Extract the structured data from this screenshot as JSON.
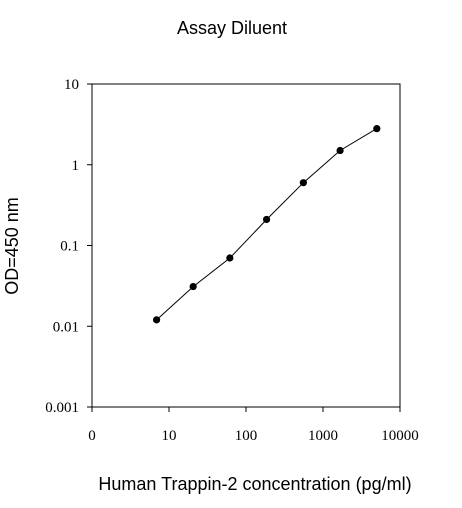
{
  "chart_data": {
    "type": "line",
    "title": "Assay Diluent",
    "xlabel": "Human Trappin-2 concentration (pg/ml)",
    "ylabel": "OD=450 nm",
    "x_scale": "log",
    "y_scale": "log",
    "xlim": [
      1,
      10000
    ],
    "ylim": [
      0.001,
      10
    ],
    "x_ticks": [
      1,
      10,
      100,
      1000,
      10000
    ],
    "x_tick_labels": [
      "0",
      "10",
      "100",
      "1000",
      "10000"
    ],
    "y_ticks": [
      0.001,
      0.01,
      0.1,
      1,
      10
    ],
    "y_tick_labels": [
      "0.001",
      "0.01",
      "0.1",
      "1",
      "10"
    ],
    "grid": false,
    "legend": "none",
    "series": [
      {
        "color": "#000000",
        "x": [
          6.9,
          20.6,
          61.7,
          185,
          556,
          1667,
          5000
        ],
        "y": [
          0.012,
          0.031,
          0.07,
          0.21,
          0.6,
          1.5,
          2.8
        ]
      }
    ]
  }
}
